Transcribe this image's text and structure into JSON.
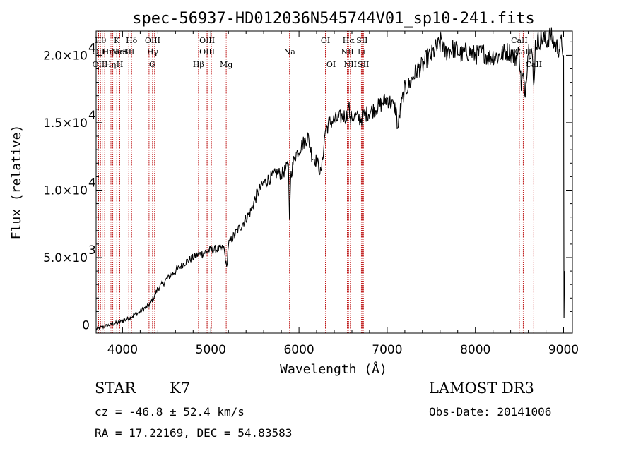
{
  "chart_data": {
    "type": "line",
    "title": "spec-56937-HD012036N545744V01_sp10-241.fits",
    "xlabel": "Wavelength (Å)",
    "ylabel": "Flux (relative)",
    "xlim": [
      3700,
      9100
    ],
    "ylim": [
      -600,
      21800
    ],
    "x_ticks": [
      {
        "value": 4000,
        "label": "4000"
      },
      {
        "value": 5000,
        "label": "5000"
      },
      {
        "value": 6000,
        "label": "6000"
      },
      {
        "value": 7000,
        "label": "7000"
      },
      {
        "value": 8000,
        "label": "8000"
      },
      {
        "value": 9000,
        "label": "9000"
      }
    ],
    "y_ticks": [
      {
        "value": 0,
        "mant": "0",
        "exp": ""
      },
      {
        "value": 5000,
        "mant": "5.0×10",
        "exp": "3"
      },
      {
        "value": 10000,
        "mant": "1.0×10",
        "exp": "4"
      },
      {
        "value": 15000,
        "mant": "1.5×10",
        "exp": "4"
      },
      {
        "value": 20000,
        "mant": "2.0×10",
        "exp": "4"
      }
    ],
    "series": [
      {
        "name": "flux",
        "x": [
          3700,
          3750,
          3800,
          3850,
          3900,
          3950,
          4000,
          4050,
          4100,
          4150,
          4200,
          4250,
          4300,
          4350,
          4400,
          4450,
          4500,
          4550,
          4600,
          4650,
          4700,
          4750,
          4800,
          4850,
          4900,
          4950,
          5000,
          5050,
          5100,
          5150,
          5180,
          5200,
          5250,
          5300,
          5350,
          5400,
          5450,
          5500,
          5550,
          5600,
          5650,
          5700,
          5750,
          5800,
          5850,
          5880,
          5893,
          5905,
          5950,
          6000,
          6050,
          6100,
          6150,
          6200,
          6250,
          6300,
          6350,
          6400,
          6450,
          6500,
          6550,
          6563,
          6580,
          6600,
          6650,
          6700,
          6750,
          6800,
          6850,
          6900,
          6950,
          7000,
          7050,
          7100,
          7120,
          7150,
          7200,
          7250,
          7300,
          7350,
          7400,
          7450,
          7500,
          7550,
          7600,
          7620,
          7650,
          7700,
          7750,
          7800,
          7850,
          7900,
          7950,
          8000,
          8050,
          8100,
          8150,
          8200,
          8250,
          8300,
          8350,
          8400,
          8450,
          8498,
          8520,
          8542,
          8560,
          8600,
          8640,
          8662,
          8680,
          8700,
          8750,
          8800,
          8850,
          8900,
          8950,
          8980,
          9000,
          9005,
          9010
        ],
        "y": [
          -300,
          -200,
          -100,
          0,
          100,
          200,
          300,
          450,
          600,
          800,
          1000,
          1250,
          1500,
          2000,
          2700,
          3000,
          3400,
          3700,
          4000,
          4300,
          4600,
          4800,
          5000,
          5200,
          5300,
          5450,
          5550,
          5600,
          5650,
          5700,
          4200,
          6000,
          6500,
          7000,
          7400,
          7900,
          8400,
          9300,
          10000,
          10500,
          10800,
          11000,
          11300,
          11200,
          11500,
          12000,
          7800,
          11000,
          12500,
          13000,
          13500,
          14000,
          12500,
          12200,
          11200,
          14500,
          15000,
          15200,
          15300,
          15500,
          15500,
          16800,
          15000,
          15500,
          15400,
          15300,
          15600,
          15800,
          16000,
          16200,
          16500,
          16800,
          16400,
          16000,
          14500,
          16000,
          17500,
          17800,
          18500,
          19000,
          19200,
          19800,
          20000,
          20500,
          20800,
          21200,
          20200,
          20400,
          20500,
          20300,
          20000,
          20300,
          20200,
          20000,
          20100,
          20200,
          19800,
          20000,
          19900,
          20100,
          20300,
          20200,
          19800,
          20200,
          17800,
          18500,
          17000,
          20500,
          20400,
          17500,
          20800,
          21000,
          21300,
          21000,
          21500,
          20800,
          20500,
          21000,
          20000,
          500,
          4000
        ]
      }
    ],
    "line_markers": [
      {
        "x": 3750,
        "row": 0,
        "label": "Hθ",
        "ha": "middle"
      },
      {
        "x": 3727,
        "row": 1,
        "label": "OII",
        "ha": "middle"
      },
      {
        "x": 3727,
        "row": 2,
        "label": "OII",
        "ha": "middle"
      },
      {
        "x": 3770,
        "row": 1,
        "label": "Hη",
        "ha": "start"
      },
      {
        "x": 3797,
        "row": 2,
        "label": "Hη",
        "ha": "start"
      },
      {
        "x": 3868,
        "row": 1,
        "label": "NeIII",
        "ha": "start"
      },
      {
        "x": 3889,
        "row": 1,
        "label": "HeI",
        "ha": "start"
      },
      {
        "x": 3934,
        "row": 0,
        "label": "K",
        "ha": "middle"
      },
      {
        "x": 3968,
        "row": 2,
        "label": "H",
        "ha": "middle"
      },
      {
        "x": 4070,
        "row": 1,
        "label": "SII",
        "ha": "middle"
      },
      {
        "x": 4102,
        "row": 0,
        "label": "Hδ",
        "ha": "middle"
      },
      {
        "x": 4300,
        "row": 2,
        "label": "G",
        "ha": "start"
      },
      {
        "x": 4340,
        "row": 0,
        "label": "OIII",
        "ha": "middle"
      },
      {
        "x": 4340,
        "row": 1,
        "label": "Hγ",
        "ha": "middle"
      },
      {
        "x": 4363,
        "row": null,
        "label": "",
        "ha": "middle"
      },
      {
        "x": 4861,
        "row": 2,
        "label": "Hβ",
        "ha": "middle"
      },
      {
        "x": 4959,
        "row": 0,
        "label": "OIII",
        "ha": "middle"
      },
      {
        "x": 4959,
        "row": 1,
        "label": "OIII",
        "ha": "middle"
      },
      {
        "x": 5007,
        "row": null,
        "label": "",
        "ha": "middle"
      },
      {
        "x": 5175,
        "row": 2,
        "label": "Mg",
        "ha": "middle"
      },
      {
        "x": 5893,
        "row": 1,
        "label": "Na",
        "ha": "middle"
      },
      {
        "x": 6300,
        "row": 0,
        "label": "OI",
        "ha": "middle"
      },
      {
        "x": 6364,
        "row": 2,
        "label": "OI",
        "ha": "middle"
      },
      {
        "x": 6548,
        "row": 1,
        "label": "NII",
        "ha": "middle"
      },
      {
        "x": 6563,
        "row": 0,
        "label": "Hα",
        "ha": "middle"
      },
      {
        "x": 6583,
        "row": 2,
        "label": "NII",
        "ha": "middle"
      },
      {
        "x": 6708,
        "row": 1,
        "label": "Li",
        "ha": "middle"
      },
      {
        "x": 6716,
        "row": 0,
        "label": "SII",
        "ha": "middle"
      },
      {
        "x": 6731,
        "row": 2,
        "label": "SII",
        "ha": "middle"
      },
      {
        "x": 8498,
        "row": 0,
        "label": "CaII",
        "ha": "middle"
      },
      {
        "x": 8542,
        "row": 1,
        "label": "CaII",
        "ha": "middle"
      },
      {
        "x": 8662,
        "row": 2,
        "label": "CaII",
        "ha": "middle"
      }
    ]
  },
  "info": {
    "object_class": "STAR",
    "subclass": "K7",
    "survey": "LAMOST DR3",
    "redshift": "cz = -46.8 ± 52.4 km/s",
    "obs_date": "Obs-Date: 20141006",
    "coords": "RA =  17.22169, DEC =  54.83583"
  }
}
